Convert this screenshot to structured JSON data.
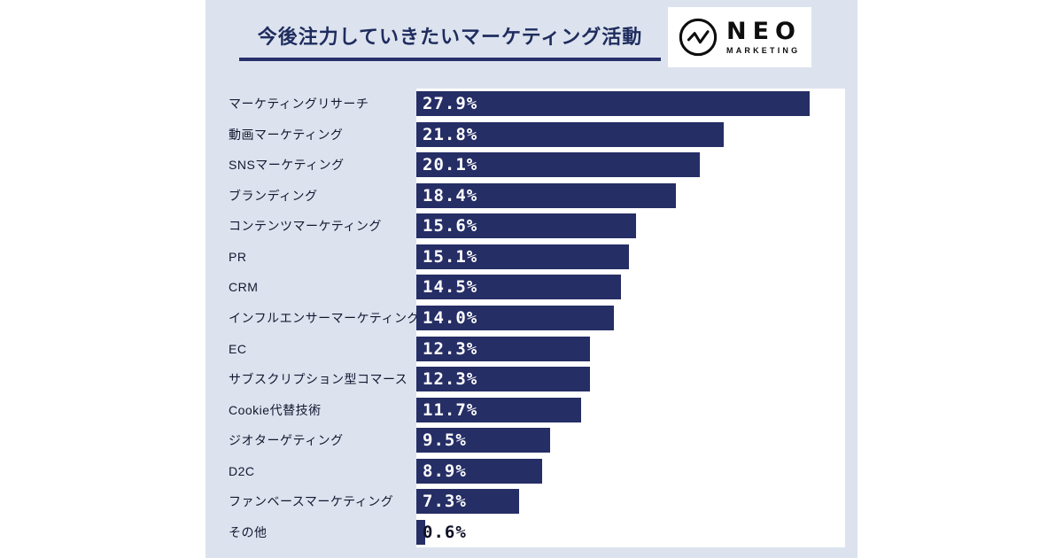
{
  "header": {
    "title": "今後注力していきたいマーケティング活動"
  },
  "logo": {
    "name": "NEO",
    "subtitle": "MARKETING",
    "icon": "pulse-circle-icon"
  },
  "chart_data": {
    "type": "bar",
    "orientation": "horizontal",
    "title": "今後注力していきたいマーケティング活動",
    "xlabel": "",
    "ylabel": "",
    "xlim": [
      0,
      30.4
    ],
    "grid": false,
    "legend": false,
    "bar_color": "#262e66",
    "plot_background": "#ffffff",
    "panel_background": "#dce3ee",
    "value_suffix": "%",
    "categories": [
      "マーケティングリサーチ",
      "動画マーケティング",
      "SNSマーケティング",
      "ブランディング",
      "コンテンツマーケティング",
      "PR",
      "CRM",
      "インフルエンサーマーケティング",
      "EC",
      "サブスクリプション型コマース",
      "Cookie代替技術",
      "ジオターゲティング",
      "D2C",
      "ファンベースマーケティング",
      "その他"
    ],
    "values": [
      27.9,
      21.8,
      20.1,
      18.4,
      15.6,
      15.1,
      14.5,
      14.0,
      12.3,
      12.3,
      11.7,
      9.5,
      8.9,
      7.3,
      0.6
    ],
    "value_labels": [
      "27.9%",
      "21.8%",
      "20.1%",
      "18.4%",
      "15.6%",
      "15.1%",
      "14.5%",
      "14.0%",
      "12.3%",
      "12.3%",
      "11.7%",
      "9.5%",
      "8.9%",
      "7.3%",
      "0.6%"
    ]
  }
}
